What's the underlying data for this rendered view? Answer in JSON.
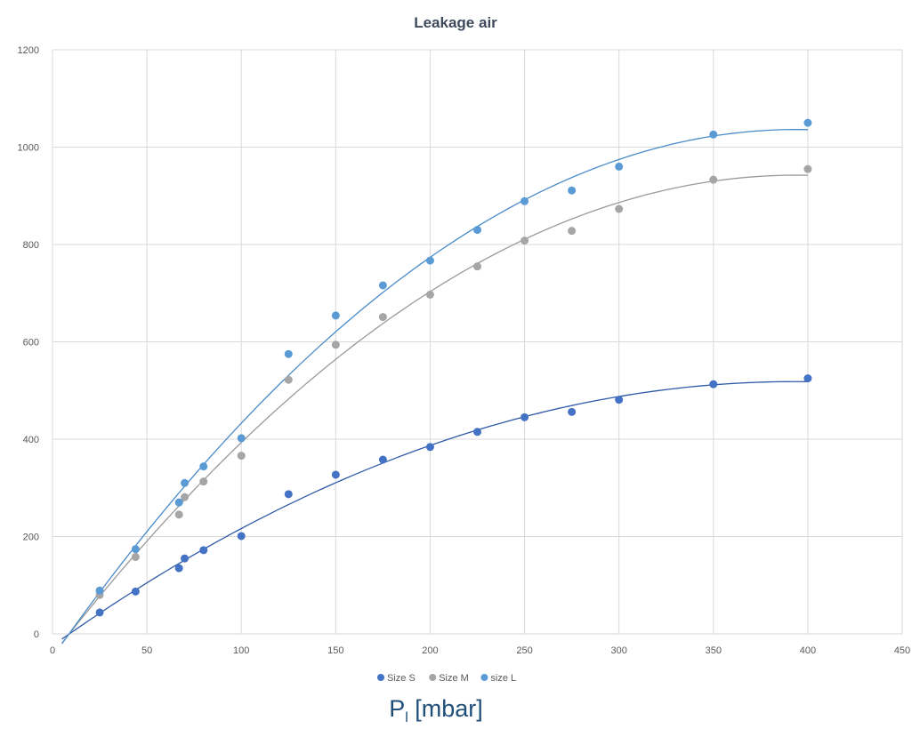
{
  "chart_data": {
    "type": "scatter",
    "title": "Leakage air",
    "xlabel": {
      "main": "P",
      "subscript": "l",
      "suffix": " [mbar]"
    },
    "ylabel": "",
    "xlim": [
      0,
      450
    ],
    "ylim": [
      0,
      1200
    ],
    "xticks": [
      0,
      50,
      100,
      150,
      200,
      250,
      300,
      350,
      400,
      450
    ],
    "yticks": [
      0,
      200,
      400,
      600,
      800,
      1000,
      1200
    ],
    "grid": true,
    "legend_position": "bottom",
    "trendline": "polynomial",
    "series": [
      {
        "name": "Size S",
        "color": "#4472c4",
        "trend_color": "#2f5aa8",
        "points": [
          [
            25,
            44
          ],
          [
            44,
            87
          ],
          [
            67,
            135
          ],
          [
            70,
            155
          ],
          [
            80,
            172
          ],
          [
            100,
            201
          ],
          [
            125,
            287
          ],
          [
            150,
            327
          ],
          [
            175,
            358
          ],
          [
            200,
            384
          ],
          [
            225,
            415
          ],
          [
            250,
            445
          ],
          [
            275,
            456
          ],
          [
            300,
            481
          ],
          [
            350,
            513
          ],
          [
            400,
            525
          ]
        ],
        "trend_range": [
          5,
          400
        ]
      },
      {
        "name": "Size M",
        "color": "#a5a5a5",
        "trend_color": "#9a9a9a",
        "points": [
          [
            25,
            80
          ],
          [
            44,
            158
          ],
          [
            67,
            245
          ],
          [
            70,
            281
          ],
          [
            80,
            313
          ],
          [
            100,
            366
          ],
          [
            125,
            522
          ],
          [
            150,
            594
          ],
          [
            175,
            651
          ],
          [
            200,
            697
          ],
          [
            225,
            755
          ],
          [
            250,
            808
          ],
          [
            275,
            828
          ],
          [
            300,
            873
          ],
          [
            350,
            933
          ],
          [
            400,
            955
          ]
        ],
        "trend_range": [
          5,
          400
        ]
      },
      {
        "name": "size L",
        "color": "#5b9bd5",
        "trend_color": "#4a8bc9",
        "points": [
          [
            25,
            89
          ],
          [
            44,
            174
          ],
          [
            67,
            270
          ],
          [
            70,
            310
          ],
          [
            80,
            344
          ],
          [
            100,
            402
          ],
          [
            125,
            575
          ],
          [
            150,
            654
          ],
          [
            175,
            716
          ],
          [
            200,
            767
          ],
          [
            225,
            830
          ],
          [
            250,
            889
          ],
          [
            275,
            911
          ],
          [
            300,
            960
          ],
          [
            350,
            1026
          ],
          [
            400,
            1050
          ]
        ],
        "trend_range": [
          5,
          400
        ]
      }
    ]
  }
}
